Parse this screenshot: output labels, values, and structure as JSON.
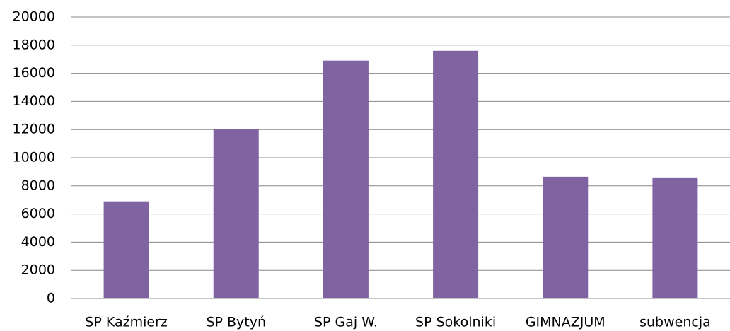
{
  "chart_data": {
    "type": "bar",
    "categories": [
      "SP Kaźmierz",
      "SP Bytyń",
      "SP Gaj W.",
      "SP Sokolniki",
      "GIMNAZJUM",
      "subwencja"
    ],
    "values": [
      6900,
      12000,
      16900,
      17600,
      8650,
      8600
    ],
    "color": "#8064a2",
    "ylim": [
      0,
      20000
    ],
    "yticks": [
      0,
      2000,
      4000,
      6000,
      8000,
      10000,
      12000,
      14000,
      16000,
      18000,
      20000
    ],
    "grid": true
  }
}
